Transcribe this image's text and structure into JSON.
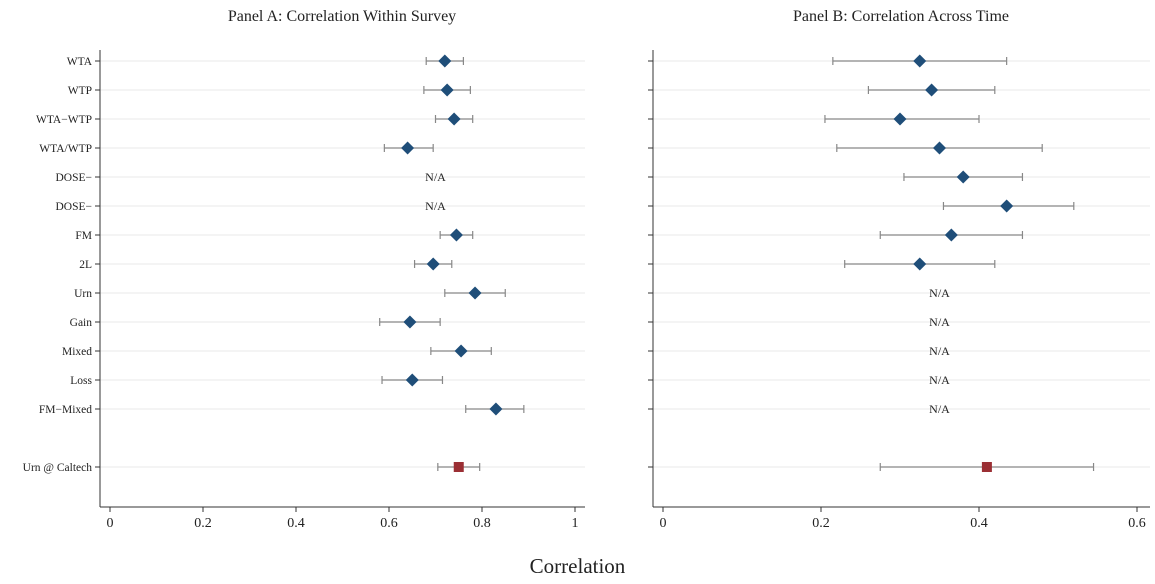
{
  "figure": {
    "xlabel": "Correlation"
  },
  "chart_data": [
    {
      "type": "dot-errorbar",
      "title": "Panel A: Correlation Within Survey",
      "xlabel": "Correlation",
      "xlim": [
        0,
        1
      ],
      "xticks": [
        0,
        0.2,
        0.4,
        0.6,
        0.8,
        1
      ],
      "xtick_labels": [
        "0",
        "0.2",
        "0.4",
        "0.6",
        "0.8",
        "1"
      ],
      "categories": [
        "WTA",
        "WTP",
        "WTA−WTP",
        "WTA/WTP",
        "DOSE−",
        "DOSE−",
        "FM",
        "2L",
        "Urn",
        "Gain",
        "Mixed",
        "Loss",
        "FM−Mixed",
        "Urn @ Caltech"
      ],
      "na_label": "N/A",
      "grid": true,
      "points": [
        {
          "estimate": 0.72,
          "lo": 0.68,
          "hi": 0.76,
          "marker": "diamond",
          "color": "#1f4e79"
        },
        {
          "estimate": 0.725,
          "lo": 0.675,
          "hi": 0.775,
          "marker": "diamond",
          "color": "#1f4e79"
        },
        {
          "estimate": 0.74,
          "lo": 0.7,
          "hi": 0.78,
          "marker": "diamond",
          "color": "#1f4e79"
        },
        {
          "estimate": 0.64,
          "lo": 0.59,
          "hi": 0.695,
          "marker": "diamond",
          "color": "#1f4e79"
        },
        null,
        null,
        {
          "estimate": 0.745,
          "lo": 0.71,
          "hi": 0.78,
          "marker": "diamond",
          "color": "#1f4e79"
        },
        {
          "estimate": 0.695,
          "lo": 0.655,
          "hi": 0.735,
          "marker": "diamond",
          "color": "#1f4e79"
        },
        {
          "estimate": 0.785,
          "lo": 0.72,
          "hi": 0.85,
          "marker": "diamond",
          "color": "#1f4e79"
        },
        {
          "estimate": 0.645,
          "lo": 0.58,
          "hi": 0.71,
          "marker": "diamond",
          "color": "#1f4e79"
        },
        {
          "estimate": 0.755,
          "lo": 0.69,
          "hi": 0.82,
          "marker": "diamond",
          "color": "#1f4e79"
        },
        {
          "estimate": 0.65,
          "lo": 0.585,
          "hi": 0.715,
          "marker": "diamond",
          "color": "#1f4e79"
        },
        {
          "estimate": 0.83,
          "lo": 0.765,
          "hi": 0.89,
          "marker": "diamond",
          "color": "#1f4e79"
        },
        {
          "estimate": 0.75,
          "lo": 0.705,
          "hi": 0.795,
          "marker": "square",
          "color": "#9b2f34"
        }
      ]
    },
    {
      "type": "dot-errorbar",
      "title": "Panel B: Correlation Across Time",
      "xlabel": "Correlation",
      "xlim": [
        0,
        0.6
      ],
      "xticks": [
        0,
        0.2,
        0.4,
        0.6
      ],
      "xtick_labels": [
        "0",
        "0.2",
        "0.4",
        "0.6"
      ],
      "categories": [
        "WTA",
        "WTP",
        "WTA−WTP",
        "WTA/WTP",
        "DOSE−",
        "DOSE−",
        "FM",
        "2L",
        "Urn",
        "Gain",
        "Mixed",
        "Loss",
        "FM−Mixed",
        "Urn @ Caltech"
      ],
      "na_label": "N/A",
      "grid": true,
      "points": [
        {
          "estimate": 0.325,
          "lo": 0.215,
          "hi": 0.435,
          "marker": "diamond",
          "color": "#1f4e79"
        },
        {
          "estimate": 0.34,
          "lo": 0.26,
          "hi": 0.42,
          "marker": "diamond",
          "color": "#1f4e79"
        },
        {
          "estimate": 0.3,
          "lo": 0.205,
          "hi": 0.4,
          "marker": "diamond",
          "color": "#1f4e79"
        },
        {
          "estimate": 0.35,
          "lo": 0.22,
          "hi": 0.48,
          "marker": "diamond",
          "color": "#1f4e79"
        },
        {
          "estimate": 0.38,
          "lo": 0.305,
          "hi": 0.455,
          "marker": "diamond",
          "color": "#1f4e79"
        },
        {
          "estimate": 0.435,
          "lo": 0.355,
          "hi": 0.52,
          "marker": "diamond",
          "color": "#1f4e79"
        },
        {
          "estimate": 0.365,
          "lo": 0.275,
          "hi": 0.455,
          "marker": "diamond",
          "color": "#1f4e79"
        },
        {
          "estimate": 0.325,
          "lo": 0.23,
          "hi": 0.42,
          "marker": "diamond",
          "color": "#1f4e79"
        },
        null,
        null,
        null,
        null,
        null,
        {
          "estimate": 0.41,
          "lo": 0.275,
          "hi": 0.545,
          "marker": "square",
          "color": "#9b2f34"
        }
      ]
    }
  ]
}
